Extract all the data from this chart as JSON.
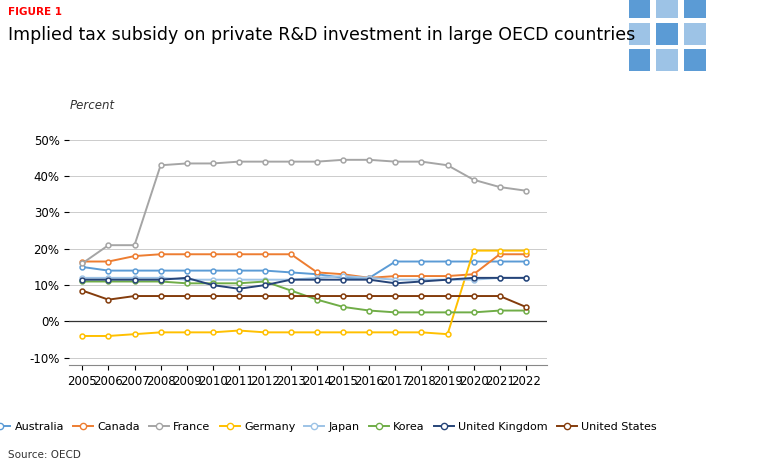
{
  "title": "Implied tax subsidy on private R&D investment in large OECD countries",
  "figure_label": "FIGURE 1",
  "ylabel": "Percent",
  "source": "Source: OECD",
  "years": [
    2005,
    2006,
    2007,
    2008,
    2009,
    2010,
    2011,
    2012,
    2013,
    2014,
    2015,
    2016,
    2017,
    2018,
    2019,
    2020,
    2021,
    2022
  ],
  "series": {
    "Australia": {
      "color": "#5B9BD5",
      "values": [
        0.15,
        0.14,
        0.14,
        0.14,
        0.14,
        0.14,
        0.14,
        0.14,
        0.135,
        0.13,
        0.12,
        0.12,
        0.165,
        0.165,
        0.165,
        0.165,
        0.165,
        0.165
      ]
    },
    "Canada": {
      "color": "#ED7D31",
      "values": [
        0.165,
        0.165,
        0.18,
        0.185,
        0.185,
        0.185,
        0.185,
        0.185,
        0.185,
        0.135,
        0.13,
        0.12,
        0.125,
        0.125,
        0.125,
        0.13,
        0.185,
        0.185
      ]
    },
    "France": {
      "color": "#A5A5A5",
      "values": [
        0.16,
        0.21,
        0.21,
        0.43,
        0.435,
        0.435,
        0.44,
        0.44,
        0.44,
        0.44,
        0.445,
        0.445,
        0.44,
        0.44,
        0.43,
        0.39,
        0.37,
        0.36
      ]
    },
    "Germany": {
      "color": "#FFC000",
      "values": [
        -0.04,
        -0.04,
        -0.035,
        -0.03,
        -0.03,
        -0.03,
        -0.025,
        -0.03,
        -0.03,
        -0.03,
        -0.03,
        -0.03,
        -0.03,
        -0.03,
        -0.035,
        0.195,
        0.195,
        0.195
      ]
    },
    "Japan": {
      "color": "#9DC3E6",
      "values": [
        0.12,
        0.12,
        0.12,
        0.12,
        0.115,
        0.115,
        0.115,
        0.115,
        0.115,
        0.12,
        0.125,
        0.12,
        0.115,
        0.115,
        0.115,
        0.115,
        0.12,
        0.12
      ]
    },
    "Korea": {
      "color": "#70AD47",
      "values": [
        0.11,
        0.11,
        0.11,
        0.11,
        0.105,
        0.105,
        0.105,
        0.11,
        0.085,
        0.06,
        0.04,
        0.03,
        0.025,
        0.025,
        0.025,
        0.025,
        0.03,
        0.03
      ]
    },
    "United Kingdom": {
      "color": "#264478",
      "values": [
        0.115,
        0.115,
        0.115,
        0.115,
        0.12,
        0.1,
        0.09,
        0.1,
        0.115,
        0.115,
        0.115,
        0.115,
        0.105,
        0.11,
        0.115,
        0.12,
        0.12,
        0.12
      ]
    },
    "United States": {
      "color": "#843C0C",
      "values": [
        0.085,
        0.06,
        0.07,
        0.07,
        0.07,
        0.07,
        0.07,
        0.07,
        0.07,
        0.07,
        0.07,
        0.07,
        0.07,
        0.07,
        0.07,
        0.07,
        0.07,
        0.04
      ]
    }
  },
  "ylim": [
    -0.12,
    0.55
  ],
  "yticks": [
    -0.1,
    0.0,
    0.1,
    0.2,
    0.3,
    0.4,
    0.5
  ],
  "ytick_labels": [
    "-10%",
    "0%",
    "10%",
    "20%",
    "30%",
    "40%",
    "50%"
  ],
  "background_color": "#FFFFFF",
  "grid_color": "#CCCCCC",
  "tpc_bg_color": "#1F4E79",
  "tpc_light_color": "#5B9BD5",
  "tpc_lighter_color": "#9DC3E6"
}
